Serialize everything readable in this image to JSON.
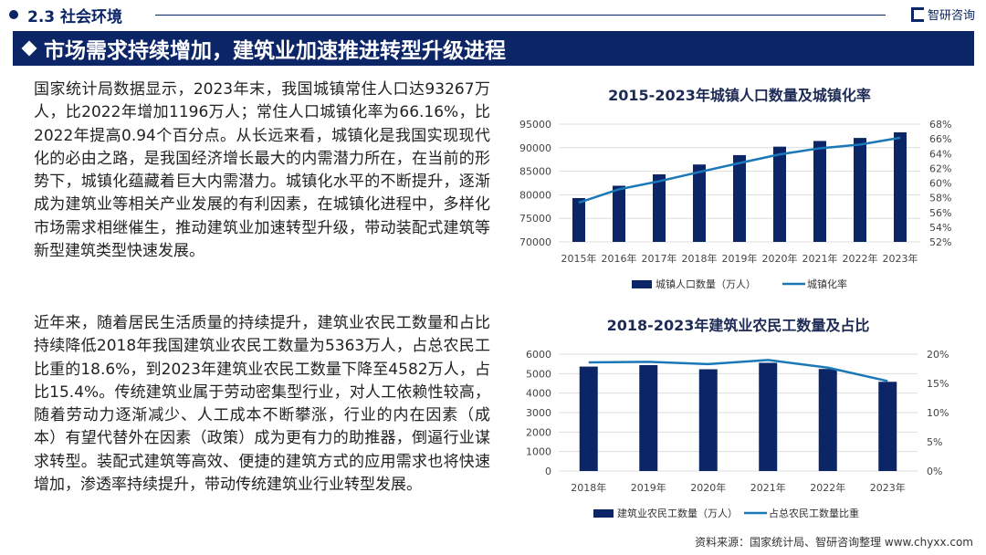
{
  "header": {
    "section": "2.3 社会环境",
    "logo": "智研咨询",
    "title": "市场需求持续增加，建筑业加速推进转型升级进程"
  },
  "body": {
    "p1": "国家统计局数据显示，2023年末，我国城镇常住人口达93267万人，比2022年增加1196万人；常住人口城镇化率为66.16%，比2022年提高0.94个百分点。从长远来看，城镇化是我国实现现代化的必由之路，是我国经济增长最大的内需潜力所在，在当前的形势下，城镇化蕴藏着巨大内需潜力。城镇化水平的不断提升，逐渐成为建筑业等相关产业发展的有利因素，在城镇化进程中，多样化市场需求相继催生，推动建筑业加速转型升级，带动装配式建筑等新型建筑类型快速发展。",
    "p2": "近年来，随着居民生活质量的持续提升，建筑业农民工数量和占比持续降低2018年我国建筑业农民工数量为5363万人，占总农民工比重的18.6%，到2023年建筑业农民工数量下降至4582万人，占比15.4%。传统建筑业属于劳动密集型行业，对人工依赖性较高，随着劳动力逐渐减少、人工成本不断攀涨，行业的内在因素（成本）有望代替外在因素（政策）成为更有力的助推器，倒逼行业谋求转型。装配式建筑等高效、便捷的建筑方式的应用需求也将快速增加，渗透率持续提升，带动传统建筑业行业转型发展。"
  },
  "source": "资料来源：国家统计局、智研咨询整理  www.chyxx.com",
  "colors": {
    "navy": "#0b2566",
    "line": "#1a78b8"
  },
  "chart_data": [
    {
      "type": "bar",
      "title": "2015-2023年城镇人口数量及城镇化率",
      "categories": [
        "2015年",
        "2016年",
        "2017年",
        "2018年",
        "2019年",
        "2020年",
        "2021年",
        "2022年",
        "2023年"
      ],
      "series": [
        {
          "name": "城镇人口数量（万人）",
          "type": "bar",
          "values": [
            79302,
            81924,
            84343,
            86433,
            88426,
            90220,
            91425,
            92071,
            93267
          ]
        },
        {
          "name": "城镇化率",
          "type": "line",
          "axis": "right",
          "values": [
            57.33,
            59.15,
            60.24,
            61.5,
            62.71,
            63.89,
            64.72,
            65.22,
            66.16
          ]
        }
      ],
      "ylim": [
        70000,
        95000
      ],
      "yticks": [
        "70000",
        "75000",
        "80000",
        "85000",
        "90000",
        "95000"
      ],
      "y2lim": [
        52,
        68
      ],
      "y2ticks": [
        "52%",
        "54%",
        "56%",
        "58%",
        "60%",
        "62%",
        "64%",
        "66%",
        "68%"
      ],
      "grid": true,
      "legend": "bottom"
    },
    {
      "type": "bar",
      "title": "2018-2023年建筑业农民工数量及占比",
      "categories": [
        "2018年",
        "2019年",
        "2020年",
        "2021年",
        "2022年",
        "2023年"
      ],
      "series": [
        {
          "name": "建筑业农民工数量（万人）",
          "type": "bar",
          "values": [
            5363,
            5437,
            5226,
            5557,
            5241,
            4582
          ]
        },
        {
          "name": "占总农民工数量比重",
          "type": "line",
          "axis": "right",
          "values": [
            18.6,
            18.7,
            18.3,
            19.0,
            17.7,
            15.4
          ]
        }
      ],
      "ylim": [
        0,
        6000
      ],
      "yticks": [
        "0",
        "1000",
        "2000",
        "3000",
        "4000",
        "5000",
        "6000"
      ],
      "y2lim": [
        0,
        20
      ],
      "y2ticks": [
        "0%",
        "5%",
        "10%",
        "15%",
        "20%"
      ],
      "grid": true,
      "legend": "bottom"
    }
  ]
}
